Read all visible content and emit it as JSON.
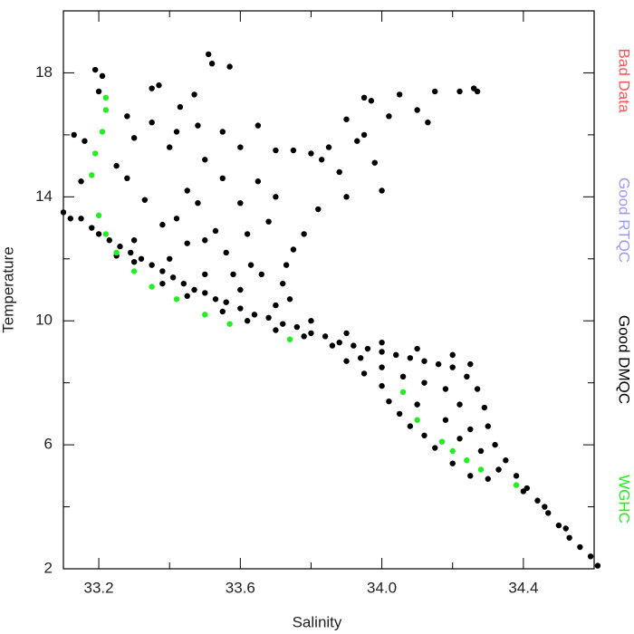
{
  "chart_data": {
    "type": "scatter",
    "x_label": "Salinity",
    "y_label": "Temperature",
    "xlim": [
      33.1,
      34.6
    ],
    "ylim": [
      2,
      20
    ],
    "xticks": [
      33.2,
      33.6,
      {
        "value": 34,
        "label": "34.0"
      },
      34.4
    ],
    "xminorticks": [
      33.4,
      33.8,
      34.2
    ],
    "yticks": [
      2,
      6,
      10,
      14,
      18
    ],
    "yminorticks": [
      4,
      8,
      12,
      16
    ],
    "legend": "right",
    "series": [
      {
        "name": "Bad Data",
        "color": "#ff5555",
        "x": [],
        "values": []
      },
      {
        "name": "Good RTQC",
        "color": "#9999ff",
        "x": [],
        "values": []
      },
      {
        "name": "Good DMQC",
        "color": "#000000",
        "x": [
          33.15,
          33.18,
          33.2,
          33.23,
          33.26,
          33.29,
          33.32,
          33.35,
          33.38,
          33.41,
          33.44,
          33.47,
          33.5,
          33.53,
          33.56,
          33.6,
          33.64,
          33.68,
          33.72,
          33.76,
          33.8,
          33.84,
          33.88,
          33.92,
          33.96,
          34.0,
          34.04,
          34.08,
          34.12,
          34.16,
          34.2,
          34.24,
          34.27,
          34.29,
          34.3,
          34.32,
          34.35,
          34.38,
          34.41,
          34.44,
          34.47,
          34.5,
          34.53,
          34.56,
          34.59,
          34.61,
          33.25,
          33.3,
          33.38,
          33.45,
          33.55,
          33.62,
          33.7,
          33.78,
          33.86,
          33.94,
          34.0,
          34.06,
          34.12,
          34.18,
          34.22,
          34.25,
          34.28,
          34.33,
          34.4,
          34.46,
          34.52,
          33.3,
          33.4,
          33.5,
          33.6,
          33.7,
          33.8,
          33.9,
          34.0,
          34.1,
          34.2,
          34.25,
          33.9,
          33.95,
          34.0,
          34.02,
          34.05,
          34.08,
          34.12,
          34.15,
          34.2,
          34.25,
          34.3,
          34.22,
          34.18,
          34.1,
          33.19,
          33.21,
          33.2,
          33.35,
          33.37,
          33.51,
          33.52,
          33.57,
          33.47,
          33.43,
          33.48,
          33.55,
          33.6,
          33.65,
          33.7,
          33.75,
          33.8,
          33.85,
          33.9,
          33.95,
          33.97,
          34.05,
          34.1,
          34.15,
          34.22,
          34.26,
          34.27,
          34.13,
          34.02,
          33.93,
          33.98,
          34.0,
          33.88,
          33.82,
          33.78,
          33.75,
          33.73,
          33.72,
          33.74,
          33.65,
          33.6,
          33.55,
          33.5,
          33.45,
          33.4,
          33.35,
          33.3,
          33.28,
          33.33,
          33.38,
          33.42,
          33.5,
          33.56,
          33.62,
          33.68,
          33.13,
          33.16,
          33.12,
          33.1,
          33.15,
          33.25,
          33.28,
          33.42,
          33.48,
          33.63,
          33.66,
          33.7,
          33.83,
          33.9,
          33.95,
          33.45,
          33.53,
          33.58
        ],
        "values": [
          13.3,
          13.0,
          12.8,
          12.6,
          12.4,
          12.2,
          12.0,
          11.8,
          11.6,
          11.4,
          11.2,
          11.0,
          10.9,
          10.7,
          10.6,
          10.4,
          10.2,
          10.1,
          9.9,
          9.8,
          9.6,
          9.5,
          9.3,
          9.2,
          9.1,
          9.0,
          8.9,
          8.8,
          8.7,
          8.6,
          8.5,
          8.2,
          7.8,
          7.2,
          6.6,
          6.0,
          5.5,
          5.0,
          4.6,
          4.2,
          3.8,
          3.4,
          3.0,
          2.7,
          2.4,
          2.1,
          12.1,
          11.9,
          11.2,
          10.8,
          10.3,
          10.0,
          9.7,
          9.5,
          9.2,
          8.8,
          8.5,
          8.2,
          8.0,
          7.8,
          7.3,
          6.5,
          5.8,
          5.2,
          4.5,
          4.0,
          3.3,
          12.6,
          12.0,
          11.5,
          11.0,
          10.5,
          10.0,
          9.6,
          9.3,
          9.1,
          8.9,
          8.6,
          8.7,
          8.3,
          7.9,
          7.4,
          7.0,
          6.6,
          6.3,
          5.9,
          5.4,
          5.0,
          4.9,
          6.2,
          6.8,
          7.3,
          18.1,
          17.9,
          17.4,
          17.5,
          17.6,
          18.6,
          18.3,
          18.2,
          17.3,
          16.9,
          16.3,
          16.1,
          15.6,
          16.3,
          15.5,
          15.5,
          15.4,
          15.6,
          16.5,
          17.2,
          17.1,
          17.3,
          16.8,
          17.4,
          17.4,
          17.5,
          17.4,
          16.4,
          16.6,
          15.8,
          15.1,
          14.2,
          14.8,
          13.6,
          12.8,
          12.3,
          11.8,
          11.2,
          10.7,
          14.5,
          13.8,
          14.6,
          15.2,
          14.2,
          15.6,
          16.4,
          15.9,
          14.6,
          13.9,
          13.1,
          13.3,
          12.6,
          12.2,
          12.8,
          13.2,
          16.0,
          15.8,
          13.3,
          13.5,
          14.5,
          15.0,
          16.6,
          16.1,
          13.8,
          11.8,
          11.5,
          14.0,
          15.2,
          14.0,
          16.0,
          12.5,
          12.9,
          11.5
        ]
      },
      {
        "name": "WGHC",
        "color": "#22ee22",
        "x": [
          33.22,
          33.22,
          33.21,
          33.19,
          33.18,
          33.2,
          33.22,
          33.25,
          33.3,
          33.35,
          33.42,
          33.5,
          33.57,
          33.74,
          34.06,
          34.1,
          34.17,
          34.2,
          34.24,
          34.28,
          34.38
        ],
        "values": [
          17.2,
          16.8,
          16.1,
          15.4,
          14.7,
          13.4,
          12.8,
          12.2,
          11.6,
          11.1,
          10.7,
          10.2,
          9.9,
          9.4,
          7.7,
          6.8,
          6.1,
          5.8,
          5.5,
          5.2,
          4.7
        ]
      }
    ]
  }
}
